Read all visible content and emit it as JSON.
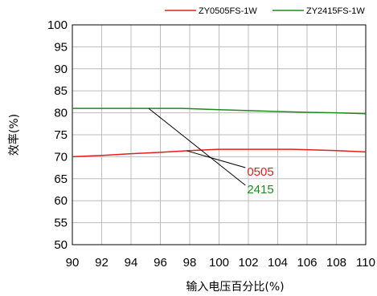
{
  "chart_data": {
    "type": "line",
    "xlabel": "输入电压百分比(%)",
    "ylabel": "效率(%)",
    "xlim": [
      90,
      110
    ],
    "ylim": [
      50,
      100
    ],
    "x_ticks": [
      90,
      92,
      94,
      96,
      98,
      100,
      102,
      104,
      106,
      108,
      110
    ],
    "y_ticks": [
      50,
      55,
      60,
      65,
      70,
      75,
      80,
      85,
      90,
      95,
      100
    ],
    "grid": true,
    "legend_position": "top-right",
    "series": [
      {
        "name": "ZY0505FS-1W",
        "color": "#e41e1e",
        "x": [
          90,
          92,
          94,
          96,
          98,
          100,
          102,
          104,
          105,
          106,
          108,
          110
        ],
        "y": [
          70.0,
          70.3,
          70.7,
          71.0,
          71.4,
          71.7,
          71.7,
          71.7,
          71.7,
          71.6,
          71.4,
          71.1
        ]
      },
      {
        "name": "ZY2415FS-1W",
        "color": "#1e8a1e",
        "x": [
          90,
          92,
          94,
          96,
          97.5,
          100,
          102,
          104,
          106,
          108,
          110
        ],
        "y": [
          81.0,
          81.0,
          81.0,
          81.0,
          81.0,
          80.7,
          80.5,
          80.3,
          80.1,
          80.0,
          79.8
        ]
      }
    ],
    "annotations": [
      {
        "text": "0505",
        "color": "#e41e1e",
        "points_to_series": 0,
        "at_x": 97.8
      },
      {
        "text": "2415",
        "color": "#1e8a1e",
        "points_to_series": 1,
        "at_x": 95.2
      }
    ]
  }
}
